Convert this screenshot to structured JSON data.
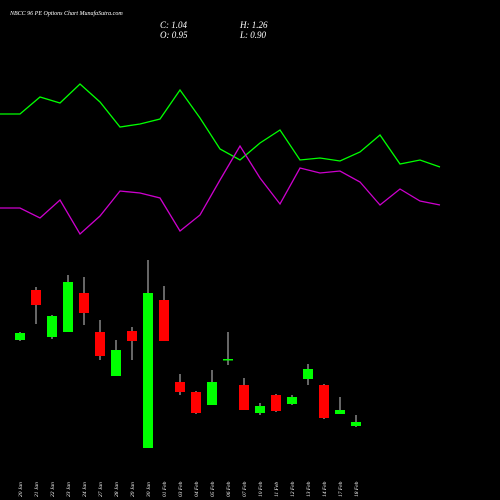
{
  "chart_data": [
    {
      "type": "candlestick",
      "title": "NBCC 96 PE Options Chart MunafaSutra.com",
      "annotations": [
        "C: 1.04",
        "H: 1.26",
        "O: 0.95",
        "L: 0.90"
      ],
      "categories": [
        "20 Jan",
        "21 Jan",
        "22 Jan",
        "23 Jan",
        "24 Jan",
        "27 Jan",
        "28 Jan",
        "29 Jan",
        "30 Jan",
        "01 Feb",
        "03 Feb",
        "04 Feb",
        "05 Feb",
        "06 Feb",
        "07 Feb",
        "10 Feb",
        "11 Feb",
        "12 Feb",
        "13 Feb",
        "14 Feb",
        "17 Feb",
        "18 Feb"
      ],
      "open": [
        2.6,
        3.6,
        2.66,
        2.76,
        3.54,
        2.76,
        1.88,
        2.78,
        0.44,
        3.4,
        1.76,
        1.56,
        1.3,
        2.2,
        1.7,
        1.14,
        1.5,
        1.32,
        1.82,
        1.7,
        1.12,
        0.88
      ],
      "high": [
        2.76,
        3.66,
        3.1,
        3.9,
        3.86,
        3.0,
        2.6,
        2.86,
        4.2,
        3.68,
        1.92,
        1.58,
        2.0,
        2.76,
        1.84,
        1.34,
        1.52,
        1.5,
        2.12,
        1.72,
        1.46,
        1.1
      ],
      "low": [
        2.58,
        2.92,
        2.62,
        2.76,
        2.9,
        2.2,
        1.88,
        2.2,
        0.44,
        2.58,
        1.5,
        1.12,
        1.3,
        2.1,
        1.2,
        1.1,
        1.16,
        1.3,
        1.7,
        1.02,
        1.12,
        0.86
      ],
      "close": [
        2.74,
        3.3,
        3.08,
        3.76,
        3.14,
        2.28,
        2.4,
        2.58,
        3.54,
        2.58,
        1.56,
        1.14,
        1.76,
        2.22,
        1.2,
        1.28,
        1.18,
        1.46,
        2.02,
        1.04,
        1.2,
        0.96
      ],
      "up_color": "#00ff00",
      "down_color": "#ff0000"
    },
    {
      "type": "line",
      "categories": [
        null,
        null,
        null,
        null,
        null,
        null,
        null,
        null,
        null,
        null,
        null,
        null,
        null,
        null,
        null,
        null,
        null,
        null,
        null,
        null,
        null,
        null,
        null
      ],
      "series": [
        {
          "color": "#00ff00",
          "values": [
            18.6,
            18.6,
            20.3,
            19.7,
            21.6,
            19.8,
            17.3,
            17.6,
            18.1,
            21.0,
            18.2,
            15.1,
            14.0,
            15.7,
            17.0,
            14.0,
            14.2,
            13.9,
            14.8,
            16.5,
            13.6,
            14.0,
            13.3
          ]
        },
        {
          "color": "#cc00cc",
          "values": [
            9.2,
            9.2,
            8.2,
            10.0,
            6.6,
            8.4,
            10.9,
            10.7,
            10.2,
            6.9,
            8.5,
            12.0,
            15.4,
            12.2,
            9.6,
            13.2,
            12.7,
            12.9,
            11.8,
            9.5,
            11.1,
            9.9,
            9.5
          ]
        }
      ]
    }
  ]
}
